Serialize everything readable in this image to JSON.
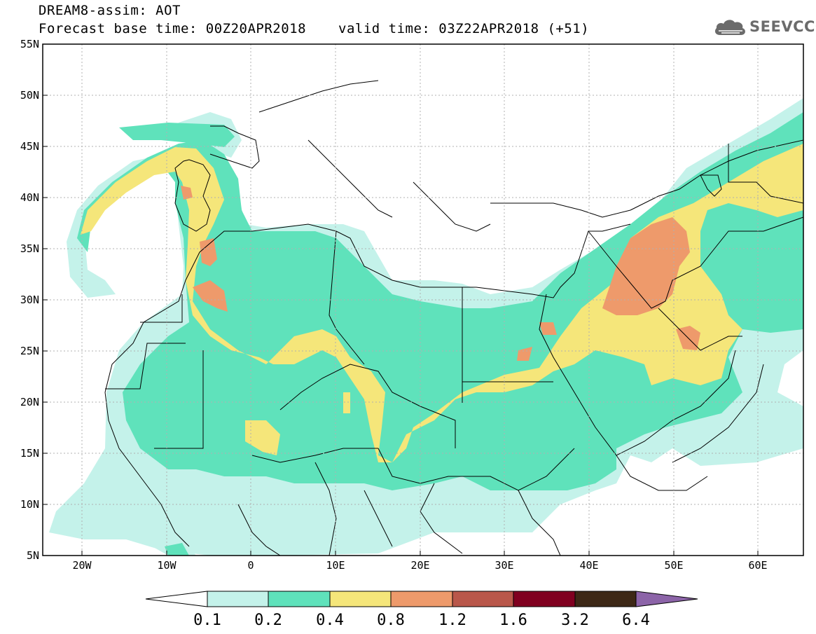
{
  "header": {
    "title_line1": "DREAM8-assim: AOT",
    "title_line2": "Forecast base time: 00Z20APR2018",
    "valid_time": "valid time: 03Z22APR2018 (+51)",
    "logo_text": "SEEVCCC",
    "logo_icon": "cloud-icon"
  },
  "map": {
    "lat_labels": [
      "55N",
      "50N",
      "45N",
      "40N",
      "35N",
      "30N",
      "25N",
      "20N",
      "15N",
      "10N",
      "5N"
    ],
    "lon_labels": [
      "20W",
      "10W",
      "0",
      "10E",
      "20E",
      "30E",
      "40E",
      "50E",
      "60E"
    ],
    "lat_range": [
      5,
      55
    ],
    "lon_range": [
      -25,
      65
    ],
    "grid": true,
    "background": "#ffffff"
  },
  "colorbar": {
    "levels": [
      "0.1",
      "0.2",
      "0.4",
      "0.8",
      "1.2",
      "1.6",
      "3.2",
      "6.4"
    ],
    "colors": [
      "#ffffff",
      "#c4f2ea",
      "#5fe2bb",
      "#f5e67a",
      "#ee9a6b",
      "#b9574a",
      "#800020",
      "#3d2816",
      "#8c64a8"
    ]
  }
}
